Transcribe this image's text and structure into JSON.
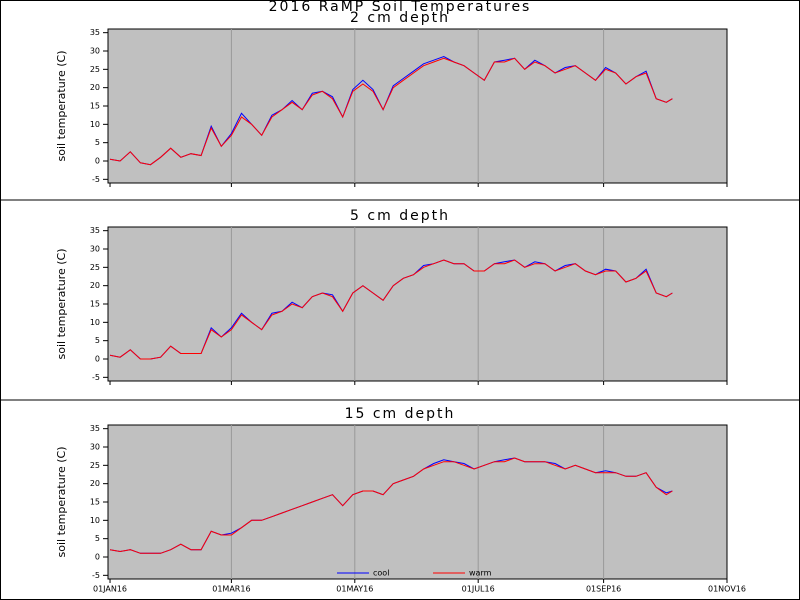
{
  "title": "2016 RaMP Soil Temperatures",
  "chart_data": [
    {
      "type": "line",
      "title": "2 cm depth",
      "y_label": "soil temperature (C)",
      "x": [
        "2016-01-01",
        "2016-01-06",
        "2016-01-11",
        "2016-01-16",
        "2016-01-21",
        "2016-01-26",
        "2016-01-31",
        "2016-02-05",
        "2016-02-10",
        "2016-02-15",
        "2016-02-20",
        "2016-02-25",
        "2016-03-01",
        "2016-03-06",
        "2016-03-11",
        "2016-03-16",
        "2016-03-21",
        "2016-03-26",
        "2016-03-31",
        "2016-04-05",
        "2016-04-10",
        "2016-04-15",
        "2016-04-20",
        "2016-04-25",
        "2016-04-30",
        "2016-05-05",
        "2016-05-10",
        "2016-05-15",
        "2016-05-20",
        "2016-05-25",
        "2016-05-30",
        "2016-06-04",
        "2016-06-09",
        "2016-06-14",
        "2016-06-19",
        "2016-06-24",
        "2016-06-29",
        "2016-07-04",
        "2016-07-09",
        "2016-07-14",
        "2016-07-19",
        "2016-07-24",
        "2016-07-29",
        "2016-08-03",
        "2016-08-08",
        "2016-08-13",
        "2016-08-18",
        "2016-08-23",
        "2016-08-28",
        "2016-09-02",
        "2016-09-07",
        "2016-09-12",
        "2016-09-17",
        "2016-09-22",
        "2016-09-27",
        "2016-10-02",
        "2016-10-05"
      ],
      "series": [
        {
          "name": "cool",
          "color": "#0000ff",
          "values": [
            0.5,
            0,
            2.5,
            -0.5,
            -1,
            1,
            3.5,
            1,
            2,
            1.5,
            9.5,
            4,
            7.5,
            13,
            10,
            7,
            12.5,
            14,
            16.5,
            14,
            18.5,
            19,
            17.5,
            12,
            19.5,
            22,
            19.5,
            14,
            20.5,
            22.5,
            24.5,
            26.5,
            27.5,
            28.5,
            27,
            26,
            24,
            22,
            27,
            27.5,
            28,
            25,
            27.5,
            26,
            24,
            25.5,
            26,
            24,
            22,
            25.5,
            24,
            21,
            23,
            24.5,
            17,
            16,
            17
          ]
        },
        {
          "name": "warm",
          "color": "#ff0000",
          "values": [
            0.5,
            0,
            2.5,
            -0.5,
            -1,
            1,
            3.5,
            1,
            2,
            1.5,
            9,
            4,
            7,
            12,
            10,
            7,
            12,
            14,
            16,
            14,
            18,
            19,
            17,
            12,
            19,
            21,
            19,
            14,
            20,
            22,
            24,
            26,
            27,
            28,
            27,
            26,
            24,
            22,
            27,
            27,
            28,
            25,
            27,
            26,
            24,
            25,
            26,
            24,
            22,
            25,
            24,
            21,
            23,
            24,
            17,
            16,
            17
          ]
        }
      ],
      "xlim": [
        "2015-12-31",
        "2016-11-01"
      ],
      "xticks": [
        "2016-01-01",
        "2016-03-01",
        "2016-05-01",
        "2016-07-01",
        "2016-09-01",
        "2016-11-01"
      ],
      "ylim": [
        -6,
        36
      ],
      "yticks": [
        -5,
        0,
        5,
        10,
        15,
        20,
        25,
        30,
        35
      ],
      "grid": true
    },
    {
      "type": "line",
      "title": "5 cm depth",
      "y_label": "soil temperature (C)",
      "x": [
        "2016-01-01",
        "2016-01-06",
        "2016-01-11",
        "2016-01-16",
        "2016-01-21",
        "2016-01-26",
        "2016-01-31",
        "2016-02-05",
        "2016-02-10",
        "2016-02-15",
        "2016-02-20",
        "2016-02-25",
        "2016-03-01",
        "2016-03-06",
        "2016-03-11",
        "2016-03-16",
        "2016-03-21",
        "2016-03-26",
        "2016-03-31",
        "2016-04-05",
        "2016-04-10",
        "2016-04-15",
        "2016-04-20",
        "2016-04-25",
        "2016-04-30",
        "2016-05-05",
        "2016-05-10",
        "2016-05-15",
        "2016-05-20",
        "2016-05-25",
        "2016-05-30",
        "2016-06-04",
        "2016-06-09",
        "2016-06-14",
        "2016-06-19",
        "2016-06-24",
        "2016-06-29",
        "2016-07-04",
        "2016-07-09",
        "2016-07-14",
        "2016-07-19",
        "2016-07-24",
        "2016-07-29",
        "2016-08-03",
        "2016-08-08",
        "2016-08-13",
        "2016-08-18",
        "2016-08-23",
        "2016-08-28",
        "2016-09-02",
        "2016-09-07",
        "2016-09-12",
        "2016-09-17",
        "2016-09-22",
        "2016-09-27",
        "2016-10-02",
        "2016-10-05"
      ],
      "series": [
        {
          "name": "cool",
          "color": "#0000ff",
          "values": [
            1,
            0.5,
            2.5,
            0,
            0,
            0.5,
            3.5,
            1.5,
            1.5,
            1.5,
            8.5,
            6,
            8.5,
            12.5,
            10,
            8,
            12.5,
            13,
            15.5,
            14,
            17,
            18,
            17.5,
            13,
            18,
            20,
            18,
            16,
            20,
            22,
            23,
            25.5,
            26,
            27,
            26,
            26,
            24,
            24,
            26,
            26.5,
            27,
            25,
            26.5,
            26,
            24,
            25.5,
            26,
            24,
            23,
            24.5,
            24,
            21,
            22,
            24.5,
            18,
            17,
            18
          ]
        },
        {
          "name": "warm",
          "color": "#ff0000",
          "values": [
            1,
            0.5,
            2.5,
            0,
            0,
            0.5,
            3.5,
            1.5,
            1.5,
            1.5,
            8,
            6,
            8,
            12,
            10,
            8,
            12,
            13,
            15,
            14,
            17,
            18,
            17,
            13,
            18,
            20,
            18,
            16,
            20,
            22,
            23,
            25,
            26,
            27,
            26,
            26,
            24,
            24,
            26,
            26,
            27,
            25,
            26,
            26,
            24,
            25,
            26,
            24,
            23,
            24,
            24,
            21,
            22,
            24,
            18,
            17,
            18
          ]
        }
      ],
      "xlim": [
        "2015-12-31",
        "2016-11-01"
      ],
      "xticks": [
        "2016-01-01",
        "2016-03-01",
        "2016-05-01",
        "2016-07-01",
        "2016-09-01",
        "2016-11-01"
      ],
      "ylim": [
        -6,
        36
      ],
      "yticks": [
        -5,
        0,
        5,
        10,
        15,
        20,
        25,
        30,
        35
      ],
      "grid": true
    },
    {
      "type": "line",
      "title": "15 cm depth",
      "y_label": "soil temperature (C)",
      "x": [
        "2016-01-01",
        "2016-01-06",
        "2016-01-11",
        "2016-01-16",
        "2016-01-21",
        "2016-01-26",
        "2016-01-31",
        "2016-02-05",
        "2016-02-10",
        "2016-02-15",
        "2016-02-20",
        "2016-02-25",
        "2016-03-01",
        "2016-03-06",
        "2016-03-11",
        "2016-03-16",
        "2016-03-21",
        "2016-03-26",
        "2016-03-31",
        "2016-04-05",
        "2016-04-10",
        "2016-04-15",
        "2016-04-20",
        "2016-04-25",
        "2016-04-30",
        "2016-05-05",
        "2016-05-10",
        "2016-05-15",
        "2016-05-20",
        "2016-05-25",
        "2016-05-30",
        "2016-06-04",
        "2016-06-09",
        "2016-06-14",
        "2016-06-19",
        "2016-06-24",
        "2016-06-29",
        "2016-07-04",
        "2016-07-09",
        "2016-07-14",
        "2016-07-19",
        "2016-07-24",
        "2016-07-29",
        "2016-08-03",
        "2016-08-08",
        "2016-08-13",
        "2016-08-18",
        "2016-08-23",
        "2016-08-28",
        "2016-09-02",
        "2016-09-07",
        "2016-09-12",
        "2016-09-17",
        "2016-09-22",
        "2016-09-27",
        "2016-10-02",
        "2016-10-05"
      ],
      "series": [
        {
          "name": "cool",
          "color": "#0000ff",
          "values": [
            2,
            1.5,
            2,
            1,
            1,
            1,
            2,
            3.5,
            2,
            2,
            7,
            6,
            6.5,
            8,
            10,
            10,
            11,
            12,
            13,
            14,
            15,
            16,
            17,
            14,
            17,
            18,
            18,
            17,
            20,
            21,
            22,
            24,
            25.5,
            26.5,
            26,
            25.5,
            24,
            25,
            26,
            26.5,
            27,
            26,
            26,
            26,
            25.5,
            24,
            25,
            24,
            23,
            23.5,
            23,
            22,
            22,
            23,
            19,
            17.5,
            18
          ]
        },
        {
          "name": "warm",
          "color": "#ff0000",
          "values": [
            2,
            1.5,
            2,
            1,
            1,
            1,
            2,
            3.5,
            2,
            2,
            7,
            6,
            6,
            8,
            10,
            10,
            11,
            12,
            13,
            14,
            15,
            16,
            17,
            14,
            17,
            18,
            18,
            17,
            20,
            21,
            22,
            24,
            25,
            26,
            26,
            25,
            24,
            25,
            26,
            26,
            27,
            26,
            26,
            26,
            25,
            24,
            25,
            24,
            23,
            23,
            23,
            22,
            22,
            23,
            19,
            17,
            18
          ]
        }
      ],
      "xlim": [
        "2015-12-31",
        "2016-11-01"
      ],
      "xticks": [
        {
          "value": "2016-01-01",
          "label": "01JAN16"
        },
        {
          "value": "2016-03-01",
          "label": "01MAR16"
        },
        {
          "value": "2016-05-01",
          "label": "01MAY16"
        },
        {
          "value": "2016-07-01",
          "label": "01JUL16"
        },
        {
          "value": "2016-09-01",
          "label": "01SEP16"
        },
        {
          "value": "2016-11-01",
          "label": "01NOV16"
        }
      ],
      "ylim": [
        -6,
        36
      ],
      "yticks": [
        -5,
        0,
        5,
        10,
        15,
        20,
        25,
        30,
        35
      ],
      "grid": true,
      "legend": "bottom"
    }
  ]
}
